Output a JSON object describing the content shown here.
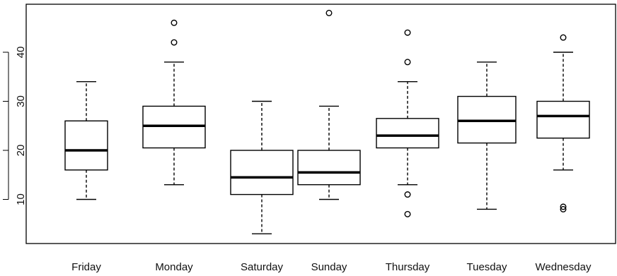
{
  "chart_data": {
    "type": "boxplot",
    "title": "",
    "xlabel": "",
    "ylabel": "",
    "ylim": [
      0,
      48.5
    ],
    "yticks": [
      10,
      20,
      30,
      40
    ],
    "grid": false,
    "categories": [
      "Friday",
      "Monday",
      "Saturday",
      "Sunday",
      "Thursday",
      "Tuesday",
      "Wednesday"
    ],
    "boxes": [
      {
        "whisker_low": 10,
        "q1": 16,
        "median": 20,
        "q3": 26,
        "whisker_high": 34,
        "outliers": []
      },
      {
        "whisker_low": 13,
        "q1": 20.5,
        "median": 25,
        "q3": 29,
        "whisker_high": 38,
        "outliers": [
          42,
          46
        ]
      },
      {
        "whisker_low": 3,
        "q1": 11,
        "median": 14.5,
        "q3": 20,
        "whisker_high": 30,
        "outliers": []
      },
      {
        "whisker_low": 10,
        "q1": 13,
        "median": 15.5,
        "q3": 20,
        "whisker_high": 29,
        "outliers": [
          48
        ]
      },
      {
        "whisker_low": 13,
        "q1": 20.5,
        "median": 23,
        "q3": 26.5,
        "whisker_high": 34,
        "outliers": [
          7,
          11,
          38,
          44
        ]
      },
      {
        "whisker_low": 8,
        "q1": 21.5,
        "median": 26,
        "q3": 31,
        "whisker_high": 38,
        "outliers": []
      },
      {
        "whisker_low": 16,
        "q1": 22.5,
        "median": 27,
        "q3": 30,
        "whisker_high": 40,
        "outliers": [
          8,
          8.5,
          43
        ]
      }
    ]
  }
}
